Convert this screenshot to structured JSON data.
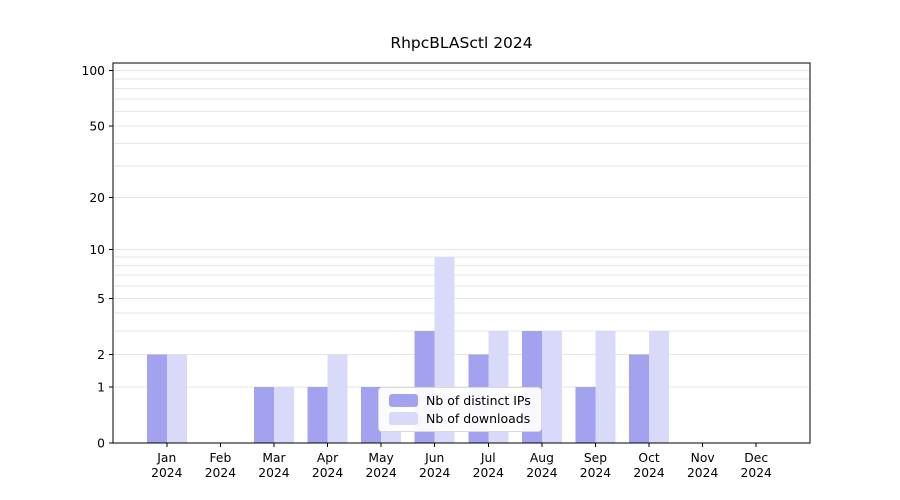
{
  "chart_data": {
    "type": "bar",
    "title": "RhpcBLASctl 2024",
    "x_year_label": "2024",
    "categories": [
      "Jan",
      "Feb",
      "Mar",
      "Apr",
      "May",
      "Jun",
      "Jul",
      "Aug",
      "Sep",
      "Oct",
      "Nov",
      "Dec"
    ],
    "series": [
      {
        "name": "Nb of distinct IPs",
        "color": "#a2a2ef",
        "values": [
          2,
          0,
          1,
          1,
          1,
          3,
          2,
          3,
          1,
          2,
          0,
          0
        ]
      },
      {
        "name": "Nb of downloads",
        "color": "#d9d9f9",
        "values": [
          2,
          0,
          1,
          2,
          1,
          9,
          3,
          3,
          3,
          3,
          0,
          0
        ]
      }
    ],
    "yticks": [
      0,
      1,
      2,
      5,
      10,
      20,
      50,
      100
    ],
    "ylim": [
      0,
      110
    ],
    "scale": "log1p",
    "grid": true,
    "gridline_values": [
      1,
      2,
      3,
      4,
      5,
      6,
      7,
      8,
      9,
      10,
      20,
      30,
      40,
      50,
      60,
      70,
      80,
      90,
      100
    ],
    "legend_position": "inside lower center"
  },
  "colors": {
    "grid": "#e6e6e6",
    "axis": "#000000",
    "background": "#ffffff"
  }
}
